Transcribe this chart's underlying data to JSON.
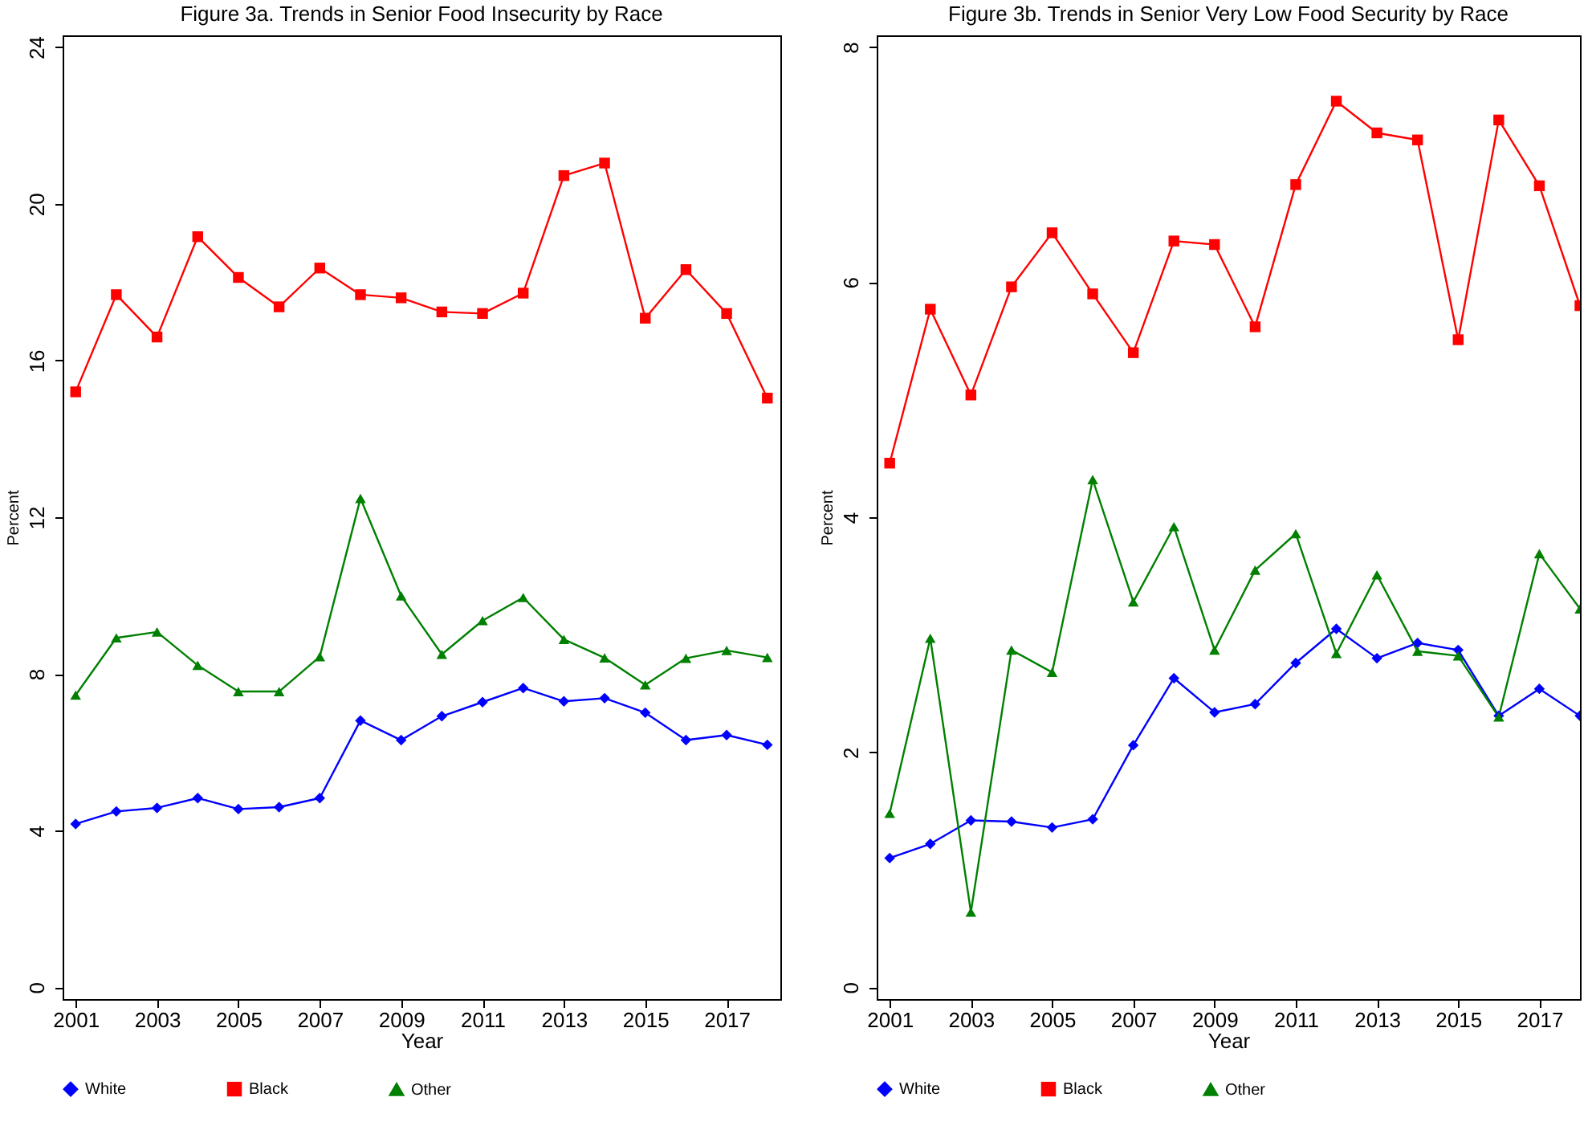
{
  "chart_data": [
    {
      "type": "line",
      "title": "Figure 3a.  Trends in Senior Food Insecurity by Race",
      "xlabel": "Year",
      "ylabel": "Percent",
      "x": [
        2001,
        2002,
        2003,
        2004,
        2005,
        2006,
        2007,
        2008,
        2009,
        2010,
        2011,
        2012,
        2013,
        2014,
        2015,
        2016,
        2017,
        2018
      ],
      "series": [
        {
          "name": "White",
          "color": "#0000ff",
          "marker": "diamond",
          "values": [
            4.17,
            4.49,
            4.58,
            4.83,
            4.55,
            4.6,
            4.83,
            6.81,
            6.31,
            6.92,
            7.28,
            7.64,
            7.3,
            7.38,
            7.01,
            6.31,
            6.44,
            6.19
          ]
        },
        {
          "name": "Black",
          "color": "#ff0000",
          "marker": "square",
          "values": [
            15.2,
            17.68,
            16.6,
            19.16,
            18.12,
            17.37,
            18.36,
            17.68,
            17.6,
            17.24,
            17.2,
            17.72,
            20.72,
            21.04,
            17.08,
            18.32,
            17.2,
            15.04
          ]
        },
        {
          "name": "Other",
          "color": "#008000",
          "marker": "triangle",
          "values": [
            7.46,
            8.92,
            9.07,
            8.22,
            7.55,
            7.55,
            8.44,
            12.48,
            9.99,
            8.5,
            9.36,
            9.95,
            8.88,
            8.41,
            7.72,
            8.4,
            8.6,
            8.42
          ]
        }
      ],
      "xlim": [
        2000.68,
        2018.32
      ],
      "xticks": [
        2001,
        2003,
        2005,
        2007,
        2009,
        2011,
        2013,
        2015,
        2017
      ],
      "ylim": [
        -0.3,
        24.3
      ],
      "yticks": [
        0,
        4,
        8,
        12,
        16,
        20,
        24
      ],
      "grid": false,
      "legend": "bottom",
      "line_style": "solid"
    },
    {
      "type": "line",
      "title": "Figure 3b.  Trends in Senior Very Low Food Security by Race",
      "xlabel": "Year",
      "ylabel": "Percent",
      "x": [
        2001,
        2002,
        2003,
        2004,
        2005,
        2006,
        2007,
        2008,
        2009,
        2010,
        2011,
        2012,
        2013,
        2014,
        2015,
        2016,
        2017,
        2018
      ],
      "series": [
        {
          "name": "White",
          "color": "#0000ff",
          "marker": "diamond",
          "values": [
            1.1,
            1.22,
            1.42,
            1.41,
            1.36,
            1.43,
            2.06,
            2.63,
            2.34,
            2.41,
            2.76,
            3.05,
            2.8,
            2.93,
            2.87,
            2.31,
            2.54,
            2.31
          ]
        },
        {
          "name": "Black",
          "color": "#ff0000",
          "marker": "square",
          "values": [
            4.46,
            5.77,
            5.04,
            5.96,
            6.42,
            5.9,
            5.4,
            6.35,
            6.32,
            5.62,
            6.83,
            7.54,
            7.27,
            7.21,
            5.51,
            7.38,
            6.82,
            5.8
          ]
        },
        {
          "name": "Other",
          "color": "#008000",
          "marker": "triangle",
          "values": [
            1.48,
            2.97,
            0.64,
            2.87,
            2.68,
            4.32,
            3.28,
            3.92,
            2.87,
            3.55,
            3.86,
            2.84,
            3.51,
            2.86,
            2.82,
            2.3,
            3.69,
            3.22
          ]
        }
      ],
      "xlim": [
        2000.68,
        2018
      ],
      "xticks": [
        2001,
        2003,
        2005,
        2007,
        2009,
        2011,
        2013,
        2015,
        2017
      ],
      "ylim": [
        -0.1,
        8.1
      ],
      "yticks": [
        0,
        2,
        4,
        6,
        8
      ],
      "grid": false,
      "legend": "bottom",
      "line_style": "solid"
    }
  ]
}
